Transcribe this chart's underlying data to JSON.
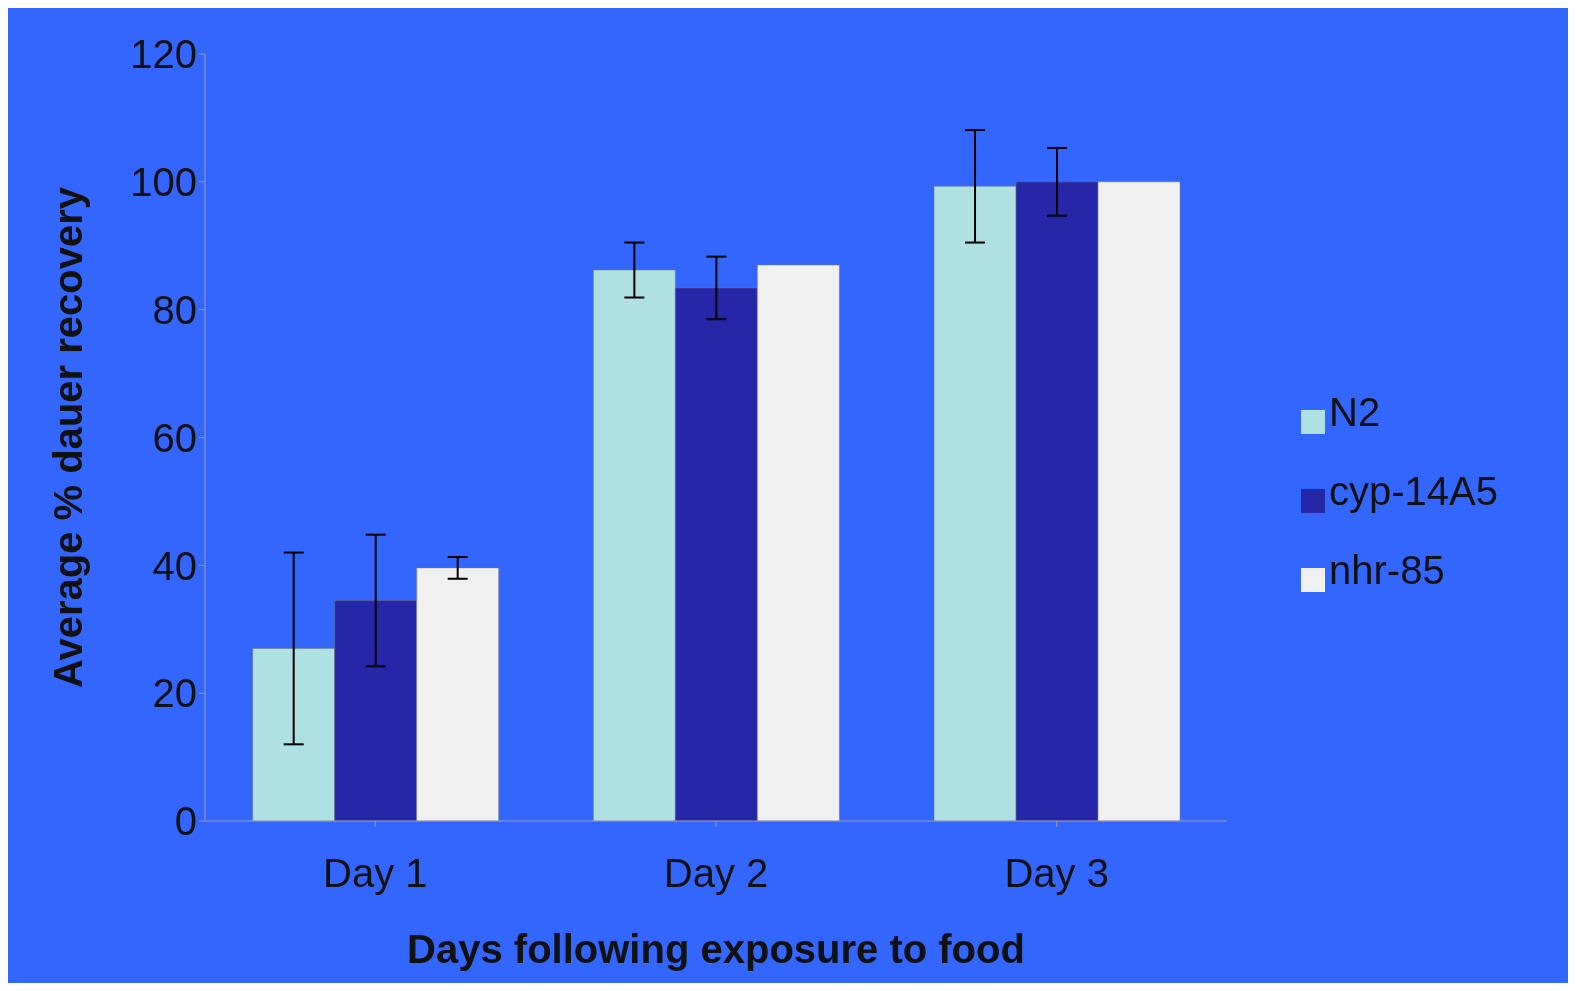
{
  "chart_data": {
    "type": "bar",
    "xlabel": "Days following exposure to food",
    "ylabel": "Average % dauer recovery",
    "categories": [
      "Day 1",
      "Day 2",
      "Day 3"
    ],
    "series": [
      {
        "name": "N2",
        "color": "#aee0e4",
        "values": [
          27,
          86.2,
          99.3
        ],
        "errors": [
          15,
          4.3,
          8.8
        ]
      },
      {
        "name": "cyp-14A5",
        "color": "#2626a8",
        "values": [
          34.5,
          83.4,
          100
        ],
        "errors": [
          10.3,
          4.9,
          5.3
        ]
      },
      {
        "name": "nhr-85",
        "color": "#f0f0f0",
        "values": [
          39.6,
          87,
          100
        ],
        "errors": [
          1.7,
          0,
          0
        ]
      }
    ],
    "ylim": [
      0,
      120
    ],
    "yticks": [
      0,
      20,
      40,
      60,
      80,
      100,
      120
    ],
    "grid": false,
    "legend": "right"
  }
}
